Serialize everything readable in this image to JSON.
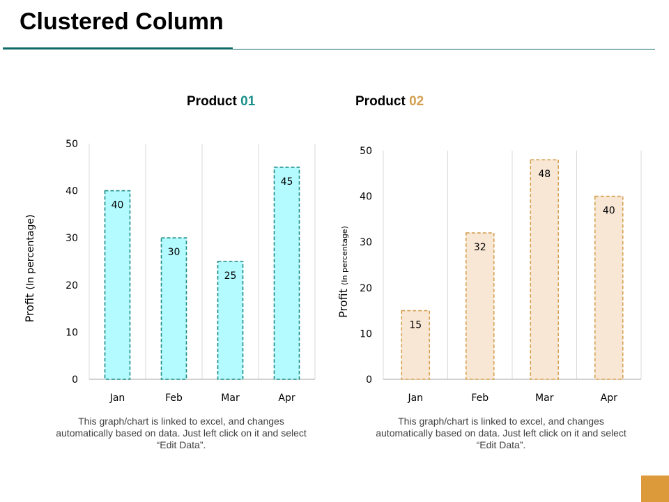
{
  "slide": {
    "title": "Clustered Column",
    "accent_color": "#106b66",
    "corner_color": "#dd9a3a"
  },
  "charts": [
    {
      "title_prefix": "Product ",
      "title_number": "01",
      "title_number_color": "#1a8f8a",
      "caption": "This graph/chart is linked to excel, and changes automatically based on data. Just left click on it and select “Edit Data”."
    },
    {
      "title_prefix": "Product ",
      "title_number": "02",
      "title_number_color": "#d4a050",
      "caption": "This graph/chart is linked to excel, and changes automatically based on data. Just left click on it and select “Edit Data”."
    }
  ],
  "chart_data": [
    {
      "type": "bar",
      "title": "Product 01",
      "categories": [
        "Jan",
        "Feb",
        "Mar",
        "Apr"
      ],
      "values": [
        40,
        30,
        25,
        45
      ],
      "ylabel_main": "Profit",
      "ylabel_sub": "(In percentage)",
      "ylim": [
        0,
        50
      ],
      "yticks": [
        0,
        10,
        20,
        30,
        40,
        50
      ],
      "grid": "vertical",
      "bar_fill": "#b3fbff",
      "bar_stroke": "#1b8a86"
    },
    {
      "type": "bar",
      "title": "Product 02",
      "categories": [
        "Jan",
        "Feb",
        "Mar",
        "Apr"
      ],
      "values": [
        15,
        32,
        48,
        40
      ],
      "ylabel_main": "Profit",
      "ylabel_sub": "(In percentage)",
      "ylim": [
        0,
        50
      ],
      "yticks": [
        0,
        10,
        20,
        30,
        40,
        50
      ],
      "grid": "vertical",
      "bar_fill": "#f9e7d5",
      "bar_stroke": "#d4a050"
    }
  ]
}
